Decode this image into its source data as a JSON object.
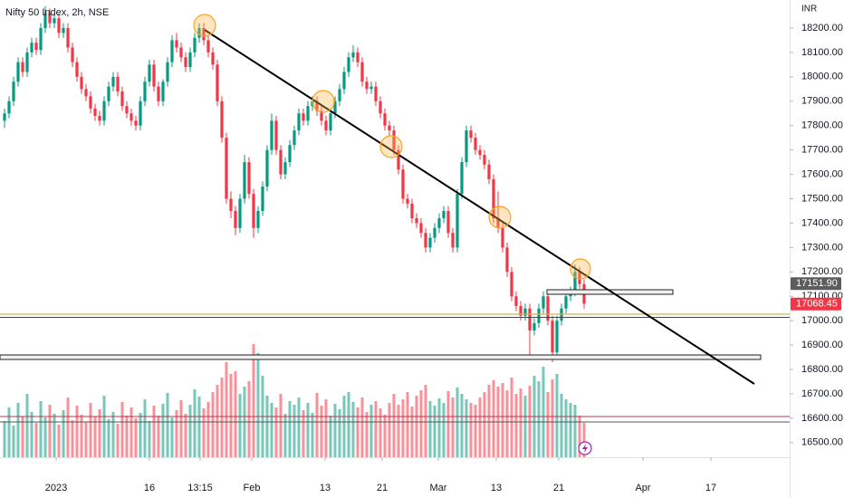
{
  "chart_data": {
    "type": "candlestick",
    "title": "Nifty 50 Index, 2h, NSE",
    "currency": "INR",
    "up_color": "#089981",
    "down_color": "#f23645",
    "xlim": [
      -1,
      173
    ],
    "xticks": [
      {
        "value": 11.4,
        "label": "2023"
      },
      {
        "value": 32,
        "label": "16"
      },
      {
        "value": 43.2,
        "label": "13:15"
      },
      {
        "value": 54.6,
        "label": "Feb"
      },
      {
        "value": 70.8,
        "label": "13"
      },
      {
        "value": 83.4,
        "label": "21"
      },
      {
        "value": 95.8,
        "label": "Mar"
      },
      {
        "value": 108.6,
        "label": "13"
      },
      {
        "value": 122.4,
        "label": "21"
      },
      {
        "value": 141,
        "label": "Apr"
      },
      {
        "value": 156,
        "label": "17"
      }
    ],
    "ylim": [
      16440,
      18315
    ],
    "yticks": [
      {
        "value": 16500,
        "label": "16500.00"
      },
      {
        "value": 16600,
        "label": "16600.00"
      },
      {
        "value": 16700,
        "label": "16700.00"
      },
      {
        "value": 16800,
        "label": "16800.00"
      },
      {
        "value": 16900,
        "label": "16900.00"
      },
      {
        "value": 17000,
        "label": "17000.00"
      },
      {
        "value": 17100,
        "label": "17100.00"
      },
      {
        "value": 17200,
        "label": "17200.00"
      },
      {
        "value": 17300,
        "label": "17300.00"
      },
      {
        "value": 17400,
        "label": "17400.00"
      },
      {
        "value": 17500,
        "label": "17500.00"
      },
      {
        "value": 17600,
        "label": "17600.00"
      },
      {
        "value": 17700,
        "label": "17700.00"
      },
      {
        "value": 17800,
        "label": "17800.00"
      },
      {
        "value": 17900,
        "label": "17900.00"
      },
      {
        "value": 18000,
        "label": "18000.00"
      },
      {
        "value": 18100,
        "label": "18100.00"
      },
      {
        "value": 18200,
        "label": "18200.00"
      }
    ],
    "price_markers": [
      {
        "value": 17151.9,
        "label": "17151.90",
        "color": "#5d5d5d"
      },
      {
        "value": 17068.45,
        "label": "17068.45",
        "color": "#f23645"
      }
    ],
    "open": [
      17820,
      17850,
      17900,
      17980,
      18060,
      18020,
      18100,
      18140,
      18110,
      18200,
      18260,
      18220,
      18240,
      18180,
      18200,
      18120,
      18060,
      18000,
      17950,
      17920,
      17870,
      17840,
      17820,
      17900,
      17960,
      18000,
      17940,
      17880,
      17850,
      17820,
      17800,
      17900,
      17980,
      18050,
      17960,
      17900,
      17980,
      18060,
      18150,
      18120,
      18080,
      18040,
      18100,
      18160,
      18200,
      18150,
      18100,
      18050,
      17900,
      17750,
      17500,
      17450,
      17380,
      17500,
      17650,
      17520,
      17380,
      17450,
      17550,
      17700,
      17820,
      17700,
      17600,
      17650,
      17720,
      17780,
      17850,
      17820,
      17880,
      17900,
      17860,
      17820,
      17780,
      17850,
      17900,
      17950,
      18020,
      18080,
      18100,
      18060,
      17980,
      17950,
      17960,
      17900,
      17850,
      17800,
      17780,
      17700,
      17620,
      17500,
      17480,
      17420,
      17400,
      17360,
      17300,
      17340,
      17380,
      17420,
      17450,
      17360,
      17300,
      17520,
      17650,
      17780,
      17750,
      17700,
      17680,
      17640,
      17580,
      17420,
      17380,
      17300,
      17200,
      17100,
      17060,
      17020,
      17050,
      16960,
      16990,
      17050,
      17100,
      17000,
      16870,
      17000,
      17050,
      17100,
      17120,
      17200,
      17150
    ],
    "high": [
      17870,
      17920,
      18000,
      18080,
      18080,
      18120,
      18160,
      18160,
      18220,
      18290,
      18280,
      18260,
      18260,
      18220,
      18220,
      18140,
      18080,
      18020,
      17970,
      17940,
      17890,
      17860,
      17920,
      17980,
      18020,
      18020,
      17960,
      17900,
      17870,
      17840,
      17920,
      18000,
      18070,
      18070,
      17980,
      17990,
      18080,
      18170,
      18180,
      18140,
      18100,
      18120,
      18180,
      18220,
      18220,
      18170,
      18120,
      18070,
      17920,
      17770,
      17530,
      17470,
      17520,
      17680,
      17670,
      17540,
      17470,
      17570,
      17720,
      17850,
      17840,
      17720,
      17670,
      17740,
      17800,
      17870,
      17870,
      17900,
      17920,
      17920,
      17880,
      17840,
      17870,
      17920,
      17970,
      18040,
      18100,
      18130,
      18120,
      18080,
      18000,
      17980,
      17980,
      17920,
      17870,
      17820,
      17800,
      17720,
      17640,
      17520,
      17500,
      17440,
      17420,
      17380,
      17360,
      17400,
      17440,
      17470,
      17470,
      17380,
      17540,
      17670,
      17800,
      17800,
      17770,
      17720,
      17700,
      17660,
      17600,
      17530,
      17400,
      17320,
      17220,
      17120,
      17080,
      17070,
      17070,
      17010,
      17070,
      17120,
      17120,
      17020,
      17020,
      17070,
      17120,
      17140,
      17230,
      17220,
      17170
    ],
    "low": [
      17790,
      17830,
      17880,
      17960,
      18000,
      18000,
      18080,
      18090,
      18090,
      18180,
      18200,
      18200,
      18160,
      18160,
      18100,
      18040,
      17980,
      17930,
      17900,
      17850,
      17820,
      17800,
      17800,
      17880,
      17940,
      17920,
      17860,
      17830,
      17800,
      17780,
      17780,
      17880,
      17960,
      17940,
      17880,
      17880,
      17960,
      18040,
      18100,
      18060,
      18020,
      18020,
      18080,
      18140,
      18130,
      18080,
      18030,
      17880,
      17730,
      17480,
      17420,
      17350,
      17360,
      17480,
      17500,
      17340,
      17360,
      17430,
      17530,
      17680,
      17680,
      17580,
      17580,
      17630,
      17700,
      17760,
      17800,
      17800,
      17860,
      17840,
      17800,
      17760,
      17760,
      17830,
      17880,
      17930,
      18000,
      18060,
      18040,
      17960,
      17930,
      17930,
      17880,
      17830,
      17780,
      17760,
      17680,
      17600,
      17480,
      17460,
      17400,
      17380,
      17340,
      17280,
      17280,
      17320,
      17360,
      17400,
      17340,
      17280,
      17280,
      17500,
      17630,
      17730,
      17680,
      17660,
      17620,
      17560,
      17400,
      17360,
      17280,
      17180,
      17080,
      17040,
      17000,
      17000,
      16850,
      16940,
      16970,
      17030,
      16980,
      16830,
      16850,
      16980,
      17030,
      17080,
      17100,
      17130,
      17050
    ],
    "close": [
      17850,
      17900,
      17980,
      18060,
      18020,
      18100,
      18140,
      18110,
      18200,
      18260,
      18220,
      18240,
      18180,
      18200,
      18120,
      18060,
      18000,
      17950,
      17920,
      17870,
      17840,
      17820,
      17900,
      17960,
      18000,
      17940,
      17880,
      17850,
      17820,
      17800,
      17900,
      17980,
      18050,
      17960,
      17900,
      17980,
      18060,
      18150,
      18120,
      18080,
      18040,
      18100,
      18160,
      18200,
      18150,
      18100,
      18050,
      17900,
      17750,
      17500,
      17450,
      17380,
      17500,
      17650,
      17520,
      17380,
      17450,
      17550,
      17700,
      17820,
      17700,
      17600,
      17650,
      17720,
      17780,
      17850,
      17820,
      17880,
      17900,
      17860,
      17820,
      17780,
      17850,
      17900,
      17950,
      18020,
      18080,
      18100,
      18060,
      17980,
      17950,
      17960,
      17900,
      17850,
      17800,
      17780,
      17700,
      17620,
      17500,
      17480,
      17420,
      17400,
      17360,
      17300,
      17340,
      17380,
      17420,
      17450,
      17360,
      17300,
      17520,
      17650,
      17780,
      17750,
      17700,
      17680,
      17640,
      17580,
      17420,
      17380,
      17300,
      17200,
      17100,
      17060,
      17020,
      17050,
      16960,
      16990,
      17050,
      17100,
      17000,
      16870,
      17000,
      17050,
      17100,
      17120,
      17200,
      17150,
      17070
    ],
    "volume": [
      40,
      55,
      35,
      60,
      45,
      70,
      50,
      38,
      62,
      44,
      58,
      48,
      36,
      52,
      66,
      41,
      57,
      47,
      39,
      60,
      45,
      53,
      68,
      42,
      50,
      37,
      61,
      46,
      55,
      43,
      49,
      64,
      40,
      57,
      46,
      59,
      71,
      44,
      52,
      63,
      48,
      58,
      75,
      67,
      54,
      61,
      72,
      80,
      88,
      105,
      92,
      95,
      70,
      78,
      84,
      125,
      115,
      90,
      68,
      60,
      55,
      70,
      48,
      62,
      58,
      66,
      52,
      60,
      49,
      71,
      57,
      64,
      46,
      59,
      53,
      68,
      72,
      61,
      55,
      66,
      50,
      58,
      62,
      54,
      47,
      60,
      70,
      58,
      64,
      72,
      56,
      68,
      74,
      80,
      62,
      57,
      65,
      60,
      73,
      66,
      77,
      70,
      64,
      60,
      58,
      66,
      72,
      80,
      85,
      78,
      82,
      74,
      88,
      70,
      76,
      68,
      79,
      90,
      84,
      100,
      72,
      86,
      92,
      70,
      64,
      60,
      58,
      46,
      38
    ]
  }
}
